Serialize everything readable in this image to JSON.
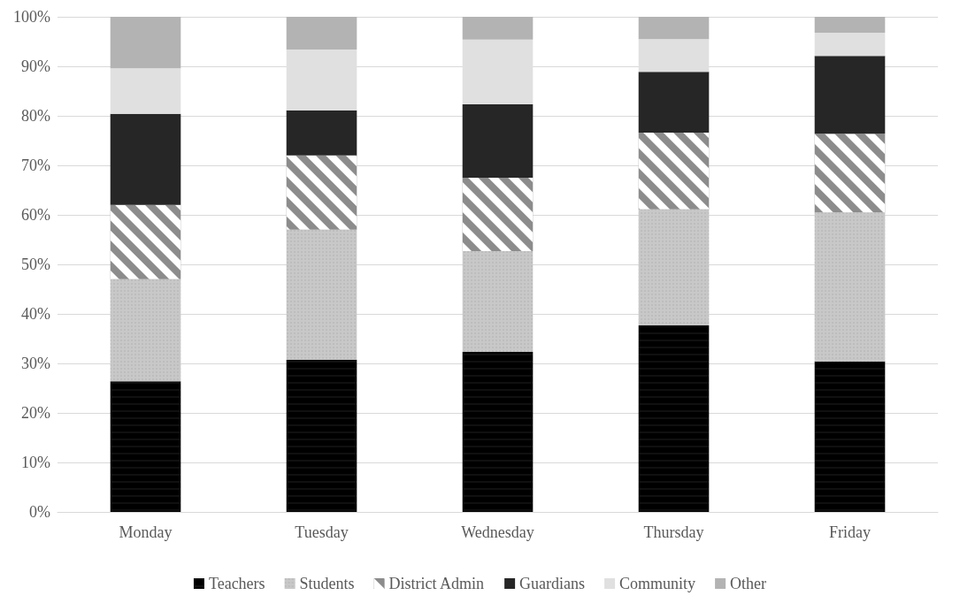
{
  "chart_data": {
    "type": "bar",
    "stacked": true,
    "categories": [
      "Monday",
      "Tuesday",
      "Wednesday",
      "Thursday",
      "Friday"
    ],
    "series": [
      {
        "name": "Teachers",
        "color": "#000000",
        "values": [
          26.4,
          30.7,
          32.3,
          37.7,
          30.4
        ]
      },
      {
        "name": "Students",
        "color": "#c8c8c8",
        "values": [
          20.6,
          26.3,
          20.4,
          23.4,
          30.1
        ]
      },
      {
        "name": "District Admin",
        "color": "#8c8c8c",
        "values": [
          15.0,
          15.0,
          14.8,
          15.5,
          15.9
        ]
      },
      {
        "name": "Guardians",
        "color": "#262626",
        "values": [
          18.4,
          9.1,
          14.8,
          12.3,
          15.7
        ]
      },
      {
        "name": "Community",
        "color": "#e0e0e0",
        "values": [
          9.2,
          12.3,
          13.1,
          6.6,
          4.7
        ]
      },
      {
        "name": "Other",
        "color": "#b3b3b3",
        "values": [
          10.4,
          6.6,
          4.6,
          4.5,
          3.2
        ]
      }
    ],
    "ylim": [
      0,
      100
    ],
    "yticks": [
      {
        "value": 0,
        "label": "0%"
      },
      {
        "value": 10,
        "label": "10%"
      },
      {
        "value": 20,
        "label": "20%"
      },
      {
        "value": 30,
        "label": "30%"
      },
      {
        "value": 40,
        "label": "40%"
      },
      {
        "value": 50,
        "label": "50%"
      },
      {
        "value": 60,
        "label": "60%"
      },
      {
        "value": 70,
        "label": "70%"
      },
      {
        "value": 80,
        "label": "80%"
      },
      {
        "value": 90,
        "label": "90%"
      },
      {
        "value": 100,
        "label": "100%"
      }
    ],
    "grid": "y",
    "legend": "bottom"
  }
}
